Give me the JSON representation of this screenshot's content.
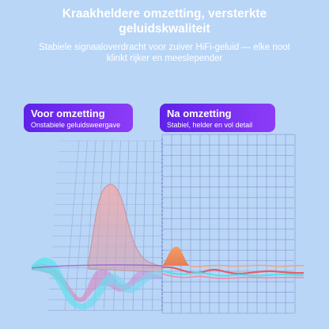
{
  "header": {
    "title": "Kraakheldere omzetting, versterkte geluidskwaliteit",
    "subtitle": "Stabiele signaaloverdracht voor zuiver HiFi-geluid — elke noot klinkt rijker en meeslepender"
  },
  "before": {
    "label": "Voor omzetting",
    "description": "Onstabiele geluidsweergave"
  },
  "after": {
    "label": "Na omzetting",
    "description": "Stabiel, helder en vol detail"
  },
  "colors": {
    "background": "#b9d6f7",
    "pill_start": "#5f22e7",
    "pill_end": "#8d3cf7",
    "grid_left": "#8fa2d6",
    "grid_right": "#8c98d2",
    "divider": "#6f82c8",
    "wave_orange": "#f08a5a",
    "wave_red": "#e35d6a",
    "wave_cyan": "#4ee0e6",
    "wave_pink": "#f28aa8"
  }
}
